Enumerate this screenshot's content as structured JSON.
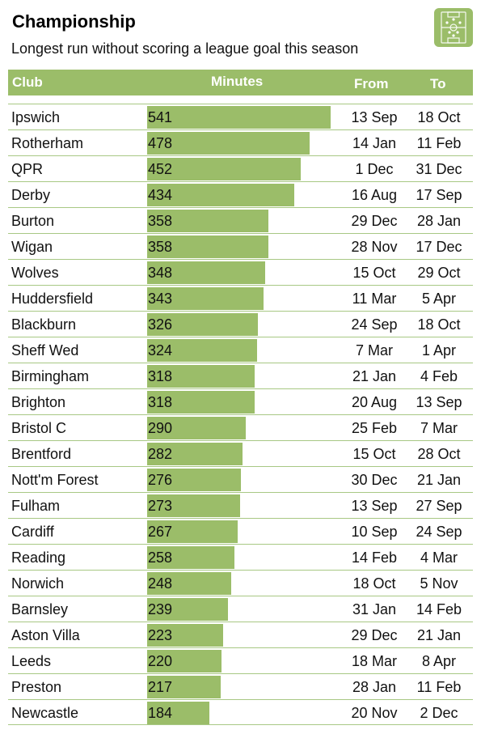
{
  "title": "Championship",
  "subtitle": "Longest run without scoring a league goal this season",
  "header": {
    "club": "Club",
    "minutes": "Minutes",
    "from": "From",
    "to": "To"
  },
  "icon": "football-pitch-icon",
  "colors": {
    "accent": "#9bbd69",
    "rule": "#a8c884"
  },
  "chart_data": {
    "type": "bar",
    "title": "Championship",
    "subtitle": "Longest run without scoring a league goal this season",
    "categories": [
      "Ipswich",
      "Rotherham",
      "QPR",
      "Derby",
      "Burton",
      "Wigan",
      "Wolves",
      "Huddersfield",
      "Blackburn",
      "Sheff Wed",
      "Birmingham",
      "Brighton",
      "Bristol C",
      "Brentford",
      "Nott'm Forest",
      "Fulham",
      "Cardiff",
      "Reading",
      "Norwich",
      "Barnsley",
      "Aston Villa",
      "Leeds",
      "Preston",
      "Newcastle"
    ],
    "values": [
      541,
      478,
      452,
      434,
      358,
      358,
      348,
      343,
      326,
      324,
      318,
      318,
      290,
      282,
      276,
      273,
      267,
      258,
      248,
      239,
      223,
      220,
      217,
      184
    ],
    "xmax": 541,
    "rows": [
      {
        "club": "Ipswich",
        "minutes": 541,
        "from": "13 Sep",
        "to": "18 Oct"
      },
      {
        "club": "Rotherham",
        "minutes": 478,
        "from": "14 Jan",
        "to": "11 Feb"
      },
      {
        "club": "QPR",
        "minutes": 452,
        "from": "1 Dec",
        "to": "31 Dec"
      },
      {
        "club": "Derby",
        "minutes": 434,
        "from": "16 Aug",
        "to": "17 Sep"
      },
      {
        "club": "Burton",
        "minutes": 358,
        "from": "29 Dec",
        "to": "28 Jan"
      },
      {
        "club": "Wigan",
        "minutes": 358,
        "from": "28 Nov",
        "to": "17 Dec"
      },
      {
        "club": "Wolves",
        "minutes": 348,
        "from": "15 Oct",
        "to": "29 Oct"
      },
      {
        "club": "Huddersfield",
        "minutes": 343,
        "from": "11 Mar",
        "to": "5 Apr"
      },
      {
        "club": "Blackburn",
        "minutes": 326,
        "from": "24 Sep",
        "to": "18 Oct"
      },
      {
        "club": "Sheff Wed",
        "minutes": 324,
        "from": "7 Mar",
        "to": "1 Apr"
      },
      {
        "club": "Birmingham",
        "minutes": 318,
        "from": "21 Jan",
        "to": "4 Feb"
      },
      {
        "club": "Brighton",
        "minutes": 318,
        "from": "20 Aug",
        "to": "13 Sep"
      },
      {
        "club": "Bristol C",
        "minutes": 290,
        "from": "25 Feb",
        "to": "7 Mar"
      },
      {
        "club": "Brentford",
        "minutes": 282,
        "from": "15 Oct",
        "to": "28 Oct"
      },
      {
        "club": "Nott'm Forest",
        "minutes": 276,
        "from": "30 Dec",
        "to": "21 Jan"
      },
      {
        "club": "Fulham",
        "minutes": 273,
        "from": "13 Sep",
        "to": "27 Sep"
      },
      {
        "club": "Cardiff",
        "minutes": 267,
        "from": "10 Sep",
        "to": "24 Sep"
      },
      {
        "club": "Reading",
        "minutes": 258,
        "from": "14 Feb",
        "to": "4 Mar"
      },
      {
        "club": "Norwich",
        "minutes": 248,
        "from": "18 Oct",
        "to": "5 Nov"
      },
      {
        "club": "Barnsley",
        "minutes": 239,
        "from": "31 Jan",
        "to": "14 Feb"
      },
      {
        "club": "Aston Villa",
        "minutes": 223,
        "from": "29 Dec",
        "to": "21 Jan"
      },
      {
        "club": "Leeds",
        "minutes": 220,
        "from": "18 Mar",
        "to": "8 Apr"
      },
      {
        "club": "Preston",
        "minutes": 217,
        "from": "28 Jan",
        "to": "11 Feb"
      },
      {
        "club": "Newcastle",
        "minutes": 184,
        "from": "20 Nov",
        "to": "2 Dec"
      }
    ]
  }
}
